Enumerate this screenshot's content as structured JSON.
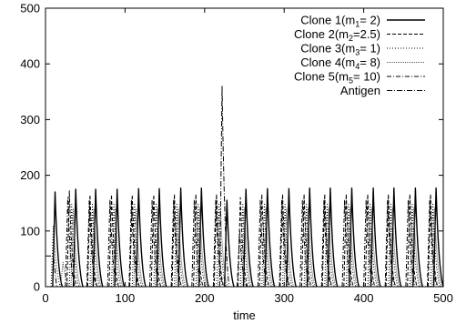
{
  "chart_data": {
    "type": "line",
    "title": "",
    "xlabel": "time",
    "ylabel": "",
    "xlim": [
      0,
      500
    ],
    "ylim": [
      0,
      500
    ],
    "xticks": [
      0,
      100,
      200,
      300,
      400,
      500
    ],
    "yticks": [
      0,
      100,
      200,
      300,
      400,
      500
    ],
    "grid": false,
    "legend_position": "top-right",
    "series": [
      {
        "name": "Clone 1",
        "legend_parts": [
          "Clone 1(m",
          "1",
          "=  2)"
        ],
        "dash": "",
        "stroke_width": 1.4,
        "color": "#000000",
        "peaks": [
          [
            12,
            170
          ],
          [
            38,
            175
          ],
          [
            63,
            175
          ],
          [
            90,
            175
          ],
          [
            117,
            176
          ],
          [
            143,
            176
          ],
          [
            170,
            177
          ],
          [
            196,
            177
          ],
          [
            228,
            155
          ],
          [
            252,
            175
          ],
          [
            279,
            176
          ],
          [
            306,
            176
          ],
          [
            332,
            177
          ],
          [
            358,
            177
          ],
          [
            385,
            177
          ],
          [
            412,
            177
          ],
          [
            438,
            177
          ],
          [
            465,
            177
          ],
          [
            491,
            177
          ]
        ]
      },
      {
        "name": "Clone 2",
        "legend_parts": [
          "Clone 2(m",
          "2",
          "=2.5)"
        ],
        "dash": "4,2",
        "stroke_width": 1,
        "color": "#000000",
        "peaks": [
          [
            30,
            172
          ],
          [
            56,
            165
          ],
          [
            83,
            165
          ],
          [
            109,
            165
          ],
          [
            136,
            165
          ],
          [
            162,
            166
          ],
          [
            189,
            166
          ],
          [
            215,
            166
          ],
          [
            245,
            160
          ],
          [
            272,
            166
          ],
          [
            298,
            166
          ],
          [
            325,
            166
          ],
          [
            351,
            166
          ],
          [
            378,
            166
          ],
          [
            405,
            166
          ],
          [
            431,
            166
          ],
          [
            458,
            166
          ],
          [
            484,
            166
          ]
        ]
      },
      {
        "name": "Clone 3",
        "legend_parts": [
          "Clone 3(m",
          "3",
          "=  1)"
        ],
        "dash": "1,2",
        "stroke_width": 1,
        "color": "#000000",
        "peaks": [
          [
            10,
            110
          ],
          [
            33,
            148
          ],
          [
            59,
            148
          ],
          [
            86,
            148
          ],
          [
            112,
            148
          ],
          [
            139,
            148
          ],
          [
            165,
            148
          ],
          [
            192,
            148
          ],
          [
            218,
            148
          ],
          [
            248,
            148
          ],
          [
            275,
            148
          ],
          [
            301,
            148
          ],
          [
            328,
            148
          ],
          [
            354,
            148
          ],
          [
            381,
            148
          ],
          [
            408,
            148
          ],
          [
            434,
            148
          ],
          [
            461,
            148
          ],
          [
            487,
            148
          ]
        ]
      },
      {
        "name": "Clone 4",
        "legend_parts": [
          "Clone 4(m",
          "4",
          "=  8)"
        ],
        "dash": "1,1",
        "stroke_width": 1,
        "color": "#555555",
        "peaks": [
          [
            22,
            45
          ],
          [
            35,
            140
          ],
          [
            61,
            140
          ],
          [
            88,
            140
          ],
          [
            114,
            140
          ],
          [
            141,
            141
          ],
          [
            167,
            141
          ],
          [
            194,
            141
          ],
          [
            220,
            141
          ],
          [
            250,
            141
          ],
          [
            277,
            141
          ],
          [
            303,
            141
          ],
          [
            330,
            141
          ],
          [
            356,
            141
          ],
          [
            383,
            141
          ],
          [
            410,
            141
          ],
          [
            436,
            141
          ],
          [
            463,
            141
          ],
          [
            489,
            141
          ]
        ]
      },
      {
        "name": "Clone 5",
        "legend_parts": [
          "Clone 5(m",
          "5",
          "= 10)"
        ],
        "dash": "5,2,1,2",
        "stroke_width": 1,
        "color": "#000000",
        "peaks": [
          [
            28,
            160
          ],
          [
            55,
            155
          ],
          [
            81,
            155
          ],
          [
            108,
            155
          ],
          [
            134,
            155
          ],
          [
            161,
            155
          ],
          [
            187,
            155
          ],
          [
            214,
            155
          ],
          [
            244,
            100
          ],
          [
            270,
            155
          ],
          [
            297,
            155
          ],
          [
            323,
            155
          ],
          [
            350,
            155
          ],
          [
            376,
            155
          ],
          [
            403,
            155
          ],
          [
            430,
            155
          ],
          [
            456,
            155
          ],
          [
            483,
            155
          ]
        ]
      },
      {
        "name": "Antigen",
        "legend_parts": [
          "Antigen",
          "",
          ""
        ],
        "dash": "6,2,1,2",
        "stroke_width": 1,
        "color": "#000000",
        "initial": [
          [
            0,
            55
          ],
          [
            10,
            55
          ]
        ],
        "peaks": [
          [
            222,
            360
          ]
        ]
      }
    ]
  }
}
